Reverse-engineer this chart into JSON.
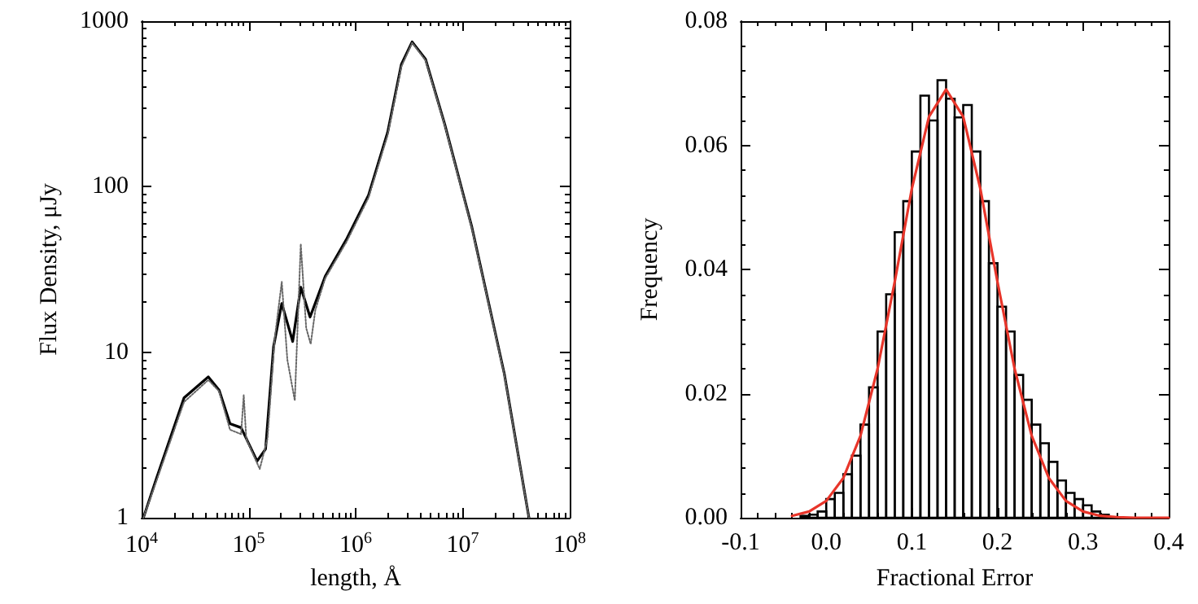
{
  "chart_data": [
    {
      "type": "line",
      "xlabel": "length, Å",
      "ylabel": "Flux Density, μJy",
      "log": "xy",
      "grid": false,
      "line_style": "solid",
      "xlim": [
        10000,
        100000000
      ],
      "xticks": [
        {
          "value": 10000,
          "label": "10$^{4}$"
        },
        {
          "value": 100000,
          "label": "10$^{5}$"
        },
        {
          "value": 1000000,
          "label": "10$^{6}$"
        },
        {
          "value": 10000000,
          "label": "10$^{7}$"
        },
        {
          "value": 100000000,
          "label": "10$^{8}$"
        }
      ],
      "ylim": [
        1,
        1000
      ],
      "yticks": [
        1,
        10,
        100,
        1000
      ],
      "series": [
        {
          "color": "#000000",
          "x": [
            10400,
            13900,
            24900,
            42000,
            53000,
            67000,
            85000,
            120000,
            144000,
            171000,
            204000,
            258000,
            307000,
            375000,
            520000,
            830000,
            1320000,
            1990000,
            2670000,
            3370000,
            4500000,
            6800000,
            12200000,
            24500000,
            41600000
          ],
          "values": [
            1,
            1.76,
            5.3,
            7.1,
            5.9,
            3.7,
            3.5,
            2.2,
            2.6,
            10.8,
            19.7,
            11.6,
            24.7,
            16.3,
            28.8,
            48.8,
            89,
            213,
            547,
            750,
            589,
            238,
            56.8,
            7.4,
            1
          ]
        },
        {
          "color": "#666666",
          "line_style": "dotted",
          "x": [
            10400,
            13900,
            24900,
            42000,
            53000,
            67000,
            85000,
            90000,
            95000,
            127000,
            150000,
            175000,
            204000,
            230000,
            270000,
            307000,
            345000,
            380000,
            420000,
            520000,
            830000,
            1320000,
            1990000,
            2670000,
            3370000,
            4500000,
            6800000,
            12200000,
            24500000,
            41600000
          ],
          "values": [
            1,
            1.7,
            5,
            6.8,
            5.8,
            3.4,
            3.2,
            5.5,
            3,
            1.97,
            3,
            12,
            26.6,
            9,
            5.1,
            45,
            14,
            11.2,
            18,
            28,
            47,
            86,
            205,
            530,
            740,
            580,
            235,
            56,
            7.3,
            1
          ]
        }
      ]
    },
    {
      "type": "histogram",
      "xlabel": "Fractional Error",
      "ylabel": "Frequency",
      "grid": false,
      "xlim": [
        -0.1,
        0.4
      ],
      "xticks": [
        -0.1,
        {
          "value": 0,
          "label": "0.0"
        },
        0.1,
        0.2,
        0.3,
        0.4
      ],
      "ylim": [
        0,
        0.08
      ],
      "yticks": [
        {
          "value": 0,
          "label": "0.00"
        },
        {
          "value": 0.02,
          "label": "0.02"
        },
        {
          "value": 0.04,
          "label": "0.04"
        },
        {
          "value": 0.06,
          "label": "0.06"
        },
        {
          "value": 0.08,
          "label": "0.08"
        }
      ],
      "series": [
        {
          "color": "#000000",
          "bins": [
            -0.03,
            -0.02,
            -0.01,
            0.0,
            0.01,
            0.02,
            0.03,
            0.04,
            0.05,
            0.06,
            0.07,
            0.08,
            0.09,
            0.1,
            0.11,
            0.12,
            0.13,
            0.14,
            0.15,
            0.16,
            0.17,
            0.18,
            0.19,
            0.2,
            0.21,
            0.22,
            0.23,
            0.24,
            0.25,
            0.26,
            0.27,
            0.28,
            0.29,
            0.3,
            0.31,
            0.32,
            0.33
          ],
          "values": [
            0.0003,
            0.0005,
            0.001,
            0.003,
            0.004,
            0.007,
            0.01,
            0.015,
            0.021,
            0.03,
            0.036,
            0.046,
            0.051,
            0.059,
            0.068,
            0.064,
            0.0705,
            0.0675,
            0.0645,
            0.0665,
            0.059,
            0.051,
            0.041,
            0.034,
            0.03,
            0.023,
            0.019,
            0.015,
            0.012,
            0.009,
            0.006,
            0.004,
            0.003,
            0.002,
            0.001,
            0.0005
          ]
        },
        {
          "type": "line",
          "color": "#e8352a",
          "x": [
            -0.04,
            -0.02,
            0.0,
            0.02,
            0.04,
            0.06,
            0.08,
            0.1,
            0.12,
            0.14,
            0.16,
            0.18,
            0.2,
            0.22,
            0.24,
            0.26,
            0.28,
            0.3,
            0.32,
            0.34,
            0.36,
            0.38,
            0.4
          ],
          "values": [
            0.0003,
            0.001,
            0.0027,
            0.0064,
            0.0132,
            0.024,
            0.038,
            0.053,
            0.0646,
            0.069,
            0.0646,
            0.053,
            0.038,
            0.024,
            0.0132,
            0.0064,
            0.0027,
            0.001,
            0.0003,
            0.0001,
            0,
            0,
            0
          ]
        }
      ]
    }
  ]
}
